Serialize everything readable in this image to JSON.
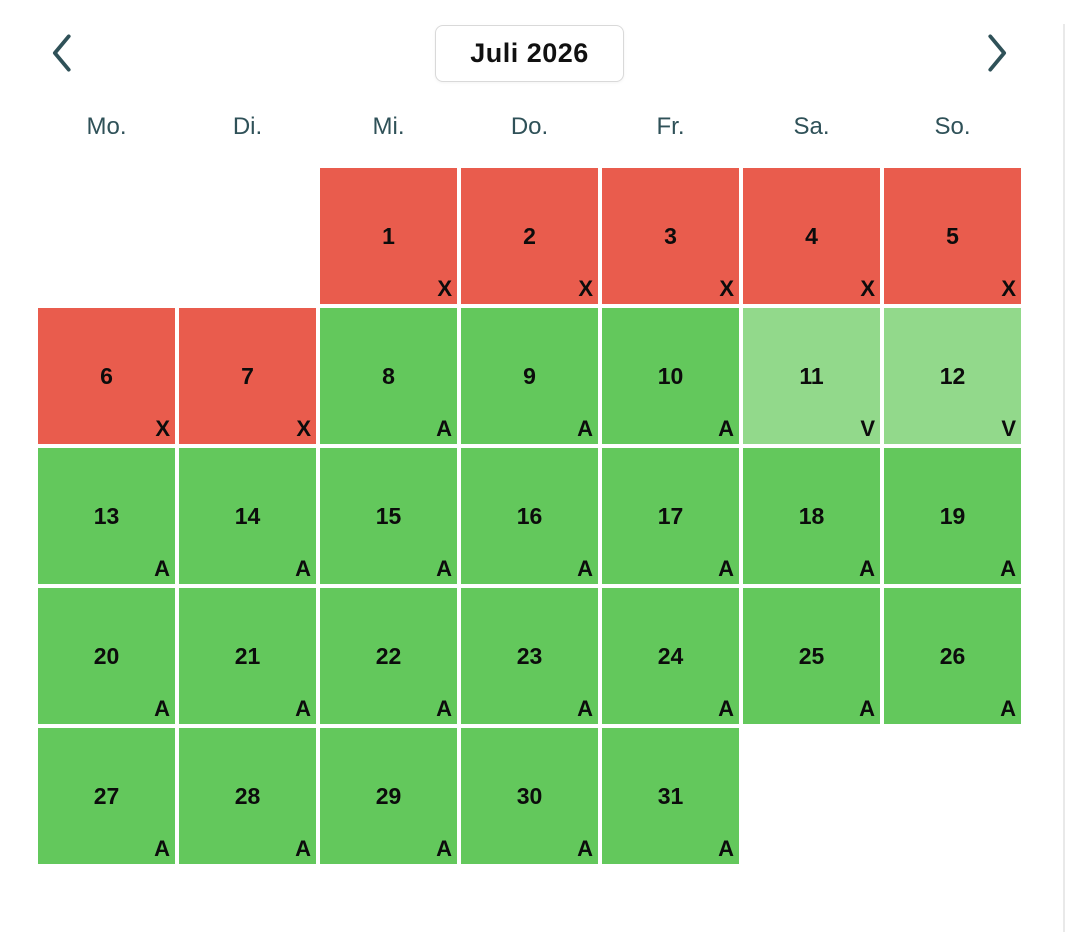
{
  "header": {
    "title": "Juli 2026",
    "prev_icon": "chevron-left",
    "next_icon": "chevron-right"
  },
  "weekdays": [
    "Mo.",
    "Di.",
    "Mi.",
    "Do.",
    "Fr.",
    "Sa.",
    "So."
  ],
  "calendar": {
    "leading_empty_cells": 2,
    "days": [
      {
        "day": "1",
        "marker": "X",
        "state": "red"
      },
      {
        "day": "2",
        "marker": "X",
        "state": "red"
      },
      {
        "day": "3",
        "marker": "X",
        "state": "red"
      },
      {
        "day": "4",
        "marker": "X",
        "state": "red"
      },
      {
        "day": "5",
        "marker": "X",
        "state": "red"
      },
      {
        "day": "6",
        "marker": "X",
        "state": "red"
      },
      {
        "day": "7",
        "marker": "X",
        "state": "red"
      },
      {
        "day": "8",
        "marker": "A",
        "state": "green"
      },
      {
        "day": "9",
        "marker": "A",
        "state": "green"
      },
      {
        "day": "10",
        "marker": "A",
        "state": "green"
      },
      {
        "day": "11",
        "marker": "V",
        "state": "lightgreen"
      },
      {
        "day": "12",
        "marker": "V",
        "state": "lightgreen"
      },
      {
        "day": "13",
        "marker": "A",
        "state": "green"
      },
      {
        "day": "14",
        "marker": "A",
        "state": "green"
      },
      {
        "day": "15",
        "marker": "A",
        "state": "green"
      },
      {
        "day": "16",
        "marker": "A",
        "state": "green"
      },
      {
        "day": "17",
        "marker": "A",
        "state": "green"
      },
      {
        "day": "18",
        "marker": "A",
        "state": "green"
      },
      {
        "day": "19",
        "marker": "A",
        "state": "green"
      },
      {
        "day": "20",
        "marker": "A",
        "state": "green"
      },
      {
        "day": "21",
        "marker": "A",
        "state": "green"
      },
      {
        "day": "22",
        "marker": "A",
        "state": "green"
      },
      {
        "day": "23",
        "marker": "A",
        "state": "green"
      },
      {
        "day": "24",
        "marker": "A",
        "state": "green"
      },
      {
        "day": "25",
        "marker": "A",
        "state": "green"
      },
      {
        "day": "26",
        "marker": "A",
        "state": "green"
      },
      {
        "day": "27",
        "marker": "A",
        "state": "green"
      },
      {
        "day": "28",
        "marker": "A",
        "state": "green"
      },
      {
        "day": "29",
        "marker": "A",
        "state": "green"
      },
      {
        "day": "30",
        "marker": "A",
        "state": "green"
      },
      {
        "day": "31",
        "marker": "A",
        "state": "green"
      }
    ]
  },
  "colors": {
    "red": "#e95c4d",
    "green": "#63c85c",
    "light_green": "#92d98b",
    "header_text": "#2f5158"
  }
}
